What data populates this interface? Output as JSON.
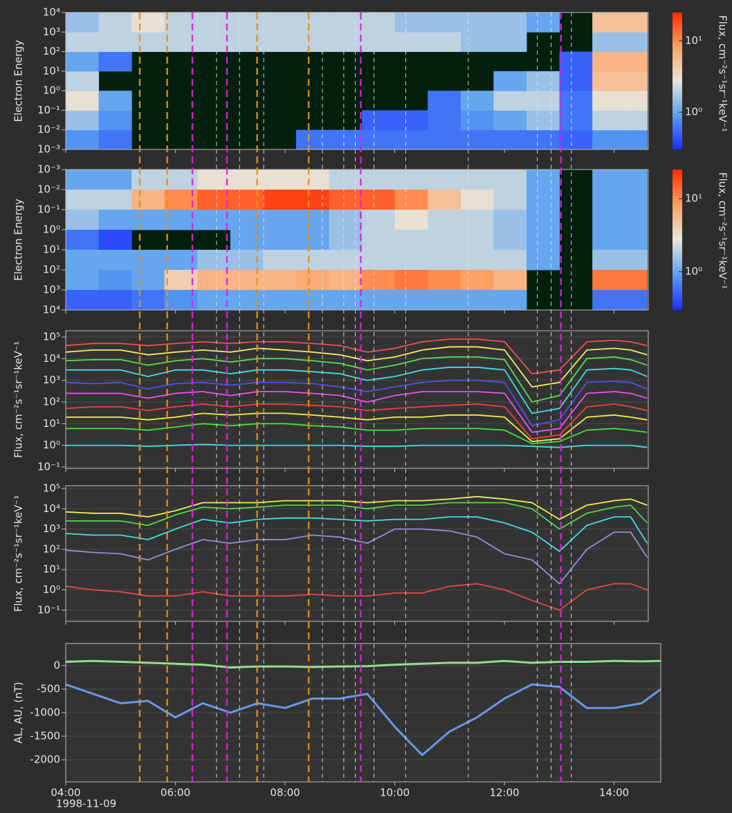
{
  "chart_data": [
    {
      "type": "heatmap",
      "ylabel": "Electron Energy",
      "ylog": true,
      "ylim": [
        0.001,
        10000
      ],
      "yticks": [
        {
          "value": 0.001,
          "label": "10⁻³"
        },
        {
          "value": 0.01,
          "label": "10⁻²"
        },
        {
          "value": 0.1,
          "label": "10⁻¹"
        },
        {
          "value": 1,
          "label": "10⁰"
        },
        {
          "value": 10,
          "label": "10¹"
        },
        {
          "value": 100,
          "label": "10²"
        },
        {
          "value": 1000,
          "label": "10³"
        },
        {
          "value": 10000,
          "label": "10⁴"
        }
      ],
      "xlim": [
        4,
        14.62
      ],
      "x_bins": [
        4,
        4.6,
        5.2,
        5.8,
        6.4,
        7,
        7.6,
        8.2,
        8.8,
        9.4,
        10,
        10.6,
        11.2,
        11.8,
        12.4,
        13,
        13.6,
        14.2,
        14.6
      ],
      "y_bins": [
        0.001,
        0.01,
        0.1,
        1,
        10,
        100,
        1000,
        10000
      ],
      "z": [
        [
          0.8,
          0.6,
          null,
          null,
          null,
          null,
          null,
          0.6,
          0.6,
          0.6,
          0.6,
          0.6,
          0.6,
          0.6,
          0.6,
          0.5,
          0.8,
          0.8
        ],
        [
          1.5,
          0.8,
          null,
          null,
          null,
          null,
          null,
          null,
          null,
          0.5,
          0.5,
          0.6,
          0.8,
          1,
          1.5,
          0.6,
          2,
          2
        ],
        [
          3,
          1,
          null,
          null,
          null,
          null,
          null,
          null,
          null,
          null,
          null,
          0.6,
          1,
          2,
          2,
          0.6,
          3,
          3
        ],
        [
          2,
          null,
          null,
          null,
          null,
          null,
          null,
          null,
          null,
          null,
          null,
          null,
          null,
          1,
          1.5,
          0.5,
          5,
          5
        ],
        [
          1,
          0.6,
          null,
          null,
          null,
          null,
          null,
          null,
          null,
          null,
          null,
          null,
          null,
          null,
          null,
          0.5,
          6,
          6
        ],
        [
          2,
          2,
          2,
          2,
          2,
          2,
          2,
          2,
          2,
          2,
          2,
          2,
          1.5,
          1.5,
          null,
          null,
          1.5,
          1.5
        ],
        [
          1.5,
          2,
          3,
          2,
          2,
          2,
          2,
          2,
          2,
          2,
          1.5,
          1.5,
          1.5,
          1.5,
          1,
          null,
          5,
          5
        ]
      ],
      "zlim": [
        0.3,
        25
      ],
      "zticks": [
        {
          "value": 1,
          "label": "10⁰"
        },
        {
          "value": 10,
          "label": "10¹"
        }
      ],
      "zlabel": "Flux, cm⁻²s⁻¹sr⁻¹keV⁻¹",
      "colormap": [
        "#1a2cff",
        "#5aa0f0",
        "#e6e6dc",
        "#ffa060",
        "#ff2a00"
      ]
    },
    {
      "type": "heatmap",
      "ylabel": "Electron Energy",
      "ylog": true,
      "ylim": [
        10000,
        0.001
      ],
      "yticks": [
        {
          "value": 0.001,
          "label": "10⁻³"
        },
        {
          "value": 0.01,
          "label": "10⁻²"
        },
        {
          "value": 0.1,
          "label": "10⁻¹"
        },
        {
          "value": 1,
          "label": "10⁰"
        },
        {
          "value": 10,
          "label": "10¹"
        },
        {
          "value": 100,
          "label": "10²"
        },
        {
          "value": 1000,
          "label": "10³"
        },
        {
          "value": 10000,
          "label": "10⁴"
        }
      ],
      "xlim": [
        4,
        14.62
      ],
      "x_bins": [
        4,
        4.6,
        5.2,
        5.8,
        6.4,
        7,
        7.6,
        8.2,
        8.8,
        9.4,
        10,
        10.6,
        11.2,
        11.8,
        12.4,
        13,
        13.6,
        14.2,
        14.6
      ],
      "y_bins": [
        0.001,
        0.01,
        0.1,
        1,
        10,
        100,
        1000,
        10000
      ],
      "z": [
        [
          1,
          1,
          2,
          2,
          3,
          3,
          3,
          3,
          2,
          2,
          2,
          2,
          2,
          2,
          1,
          null,
          1,
          1
        ],
        [
          2,
          2,
          6,
          10,
          15,
          15,
          20,
          20,
          15,
          15,
          10,
          5,
          3,
          2,
          1,
          null,
          1,
          1
        ],
        [
          1.5,
          1,
          1,
          1,
          1,
          1,
          1,
          1,
          1.5,
          2,
          3,
          2,
          2,
          1.5,
          1,
          null,
          1,
          1
        ],
        [
          0.6,
          0.4,
          null,
          null,
          null,
          1,
          1,
          1,
          1.5,
          2,
          2,
          2,
          2,
          1.5,
          1,
          null,
          1,
          1
        ],
        [
          1,
          1,
          1,
          1,
          1.5,
          1.5,
          2,
          2,
          2,
          2,
          2,
          2,
          2,
          2,
          1,
          null,
          1.5,
          1.5
        ],
        [
          1,
          0.8,
          1,
          4,
          6,
          6,
          6,
          7,
          6,
          10,
          12,
          10,
          8,
          6,
          null,
          null,
          12,
          12
        ],
        [
          0.5,
          0.5,
          0.6,
          0.8,
          1,
          1,
          1,
          1,
          1,
          1,
          1,
          1,
          1,
          1,
          null,
          null,
          0.6,
          0.6
        ]
      ],
      "zlim": [
        0.3,
        25
      ],
      "zticks": [
        {
          "value": 1,
          "label": "10⁰"
        },
        {
          "value": 10,
          "label": "10¹"
        }
      ],
      "zlabel": "Flux, cm⁻²s⁻¹sr⁻¹keV⁻¹",
      "colormap": [
        "#1a2cff",
        "#5aa0f0",
        "#e6e6dc",
        "#ffa060",
        "#ff2a00"
      ]
    },
    {
      "type": "line",
      "ylabel": "Flux, cm⁻²s⁻¹sr⁻¹keV⁻¹",
      "ylog": true,
      "grid": true,
      "ylim": [
        0.086,
        194000
      ],
      "yticks": [
        {
          "value": 0.1,
          "label": "10⁻¹"
        },
        {
          "value": 1,
          "label": "10⁰"
        },
        {
          "value": 10,
          "label": "10¹"
        },
        {
          "value": 100,
          "label": "10²"
        },
        {
          "value": 1000,
          "label": "10³"
        },
        {
          "value": 10000,
          "label": "10⁴"
        },
        {
          "value": 100000,
          "label": "10⁵"
        }
      ],
      "xlim": [
        4,
        14.62
      ],
      "x": [
        4,
        4.5,
        5,
        5.5,
        6,
        6.5,
        7,
        7.5,
        8,
        8.5,
        9,
        9.5,
        10,
        10.5,
        11,
        11.5,
        12,
        12.5,
        13,
        13.5,
        14,
        14.3,
        14.6
      ],
      "series": [
        {
          "color": "#f05050",
          "values": [
            40000,
            50000,
            50000,
            40000,
            50000,
            60000,
            50000,
            60000,
            60000,
            50000,
            40000,
            20000,
            30000,
            60000,
            80000,
            80000,
            60000,
            2000,
            3000,
            60000,
            70000,
            60000,
            40000
          ]
        },
        {
          "color": "#f5f060",
          "values": [
            20000,
            25000,
            25000,
            15000,
            20000,
            25000,
            20000,
            30000,
            25000,
            20000,
            15000,
            8000,
            12000,
            25000,
            35000,
            35000,
            25000,
            500,
            800,
            25000,
            30000,
            25000,
            15000
          ]
        },
        {
          "color": "#50e050",
          "values": [
            8000,
            9000,
            9000,
            5000,
            8000,
            10000,
            7000,
            10000,
            10000,
            8000,
            6000,
            3000,
            5000,
            10000,
            12000,
            12000,
            9000,
            100,
            200,
            10000,
            12000,
            9000,
            5000
          ]
        },
        {
          "color": "#40e0e0",
          "values": [
            3000,
            3000,
            3000,
            1500,
            3000,
            3000,
            2000,
            3000,
            3000,
            2500,
            2000,
            1000,
            1500,
            3000,
            4000,
            4000,
            3000,
            30,
            50,
            3000,
            3500,
            3000,
            1500
          ]
        },
        {
          "color": "#5050f0",
          "values": [
            800,
            700,
            800,
            400,
            700,
            800,
            600,
            800,
            800,
            700,
            500,
            300,
            500,
            800,
            1000,
            1000,
            800,
            8,
            15,
            800,
            900,
            800,
            400
          ]
        },
        {
          "color": "#f050f0",
          "values": [
            250,
            250,
            250,
            150,
            250,
            300,
            200,
            300,
            300,
            250,
            200,
            100,
            200,
            300,
            300,
            300,
            250,
            4,
            6,
            250,
            300,
            250,
            150
          ]
        },
        {
          "color": "#f04040",
          "values": [
            50,
            60,
            60,
            40,
            60,
            80,
            60,
            80,
            80,
            70,
            60,
            40,
            50,
            60,
            70,
            80,
            60,
            2,
            3,
            60,
            80,
            60,
            40
          ]
        },
        {
          "color": "#f5f040",
          "values": [
            20,
            20,
            20,
            15,
            20,
            30,
            25,
            30,
            30,
            25,
            20,
            15,
            20,
            20,
            25,
            25,
            20,
            1.5,
            2,
            20,
            25,
            20,
            15
          ]
        },
        {
          "color": "#40e040",
          "values": [
            6,
            6,
            6,
            5,
            7,
            10,
            8,
            10,
            10,
            8,
            7,
            5,
            5,
            6,
            6,
            6,
            5,
            1.2,
            1.5,
            5,
            6,
            5,
            4
          ]
        },
        {
          "color": "#40e0e0",
          "values": [
            1,
            1,
            1,
            0.9,
            1,
            1.1,
            1,
            1,
            1,
            1,
            1,
            0.9,
            0.9,
            1,
            1,
            1,
            1,
            0.9,
            0.8,
            1,
            1,
            1,
            0.8
          ]
        }
      ]
    },
    {
      "type": "line",
      "ylabel": "Flux, cm⁻²s⁻¹sr⁻¹keV⁻¹",
      "ylog": true,
      "grid": true,
      "ylim": [
        0.028,
        137000
      ],
      "yticks": [
        {
          "value": 0.1,
          "label": "10⁻¹"
        },
        {
          "value": 1,
          "label": "10⁰"
        },
        {
          "value": 10,
          "label": "10¹"
        },
        {
          "value": 100,
          "label": "10²"
        },
        {
          "value": 1000,
          "label": "10³"
        },
        {
          "value": 10000,
          "label": "10⁴"
        },
        {
          "value": 100000,
          "label": "10⁵"
        }
      ],
      "xlim": [
        4,
        14.62
      ],
      "x": [
        4,
        4.5,
        5,
        5.5,
        6,
        6.5,
        7,
        7.5,
        8,
        8.5,
        9,
        9.5,
        10,
        10.5,
        11,
        11.5,
        12,
        12.5,
        13,
        13.5,
        14,
        14.3,
        14.6
      ],
      "series": [
        {
          "color": "#f0f050",
          "values": [
            7000,
            6000,
            6000,
            4000,
            8000,
            20000,
            20000,
            20000,
            25000,
            25000,
            25000,
            20000,
            25000,
            25000,
            30000,
            40000,
            30000,
            20000,
            3000,
            15000,
            25000,
            30000,
            15000
          ]
        },
        {
          "color": "#50d850",
          "values": [
            2500,
            2500,
            2500,
            1500,
            5000,
            12000,
            10000,
            12000,
            15000,
            15000,
            15000,
            10000,
            15000,
            15000,
            20000,
            20000,
            20000,
            10000,
            1000,
            6000,
            12000,
            15000,
            2000
          ]
        },
        {
          "color": "#40e0e0",
          "values": [
            600,
            500,
            500,
            300,
            1000,
            3000,
            2000,
            3000,
            3500,
            3500,
            3000,
            2500,
            3000,
            3000,
            4000,
            4000,
            2000,
            700,
            80,
            1500,
            4000,
            4000,
            200
          ]
        },
        {
          "color": "#9090e0",
          "values": [
            90,
            70,
            60,
            30,
            100,
            300,
            200,
            300,
            300,
            500,
            400,
            200,
            1000,
            1000,
            800,
            400,
            60,
            30,
            2,
            100,
            700,
            700,
            40
          ]
        },
        {
          "color": "#e04848",
          "values": [
            1.5,
            1,
            0.8,
            0.5,
            0.5,
            0.8,
            0.5,
            0.5,
            0.5,
            0.6,
            0.5,
            0.5,
            0.7,
            0.7,
            1.5,
            2,
            1,
            0.3,
            0.1,
            1,
            2,
            2,
            1
          ]
        }
      ]
    },
    {
      "type": "line",
      "ylabel": "AL, AU, (nT)",
      "grid": true,
      "ylim": [
        -2470,
        470
      ],
      "yticks": [
        -2000,
        -1500,
        -1000,
        -500,
        0
      ],
      "xlim": [
        4,
        14.85
      ],
      "xticks": [
        {
          "value": 4,
          "label": "04:00"
        },
        {
          "value": 6,
          "label": "06:00"
        },
        {
          "value": 8,
          "label": "08:00"
        },
        {
          "value": 10,
          "label": "10:00"
        },
        {
          "value": 12,
          "label": "12:00"
        },
        {
          "value": 14,
          "label": "14:00"
        }
      ],
      "xlabel": "1998-11-09",
      "x": [
        4,
        4.5,
        5,
        5.5,
        6,
        6.5,
        7,
        7.5,
        8,
        8.5,
        9,
        9.5,
        10,
        10.5,
        11,
        11.5,
        12,
        12.5,
        13,
        13.5,
        14,
        14.5,
        14.85
      ],
      "series": [
        {
          "color": "#90e090",
          "values": [
            80,
            100,
            80,
            60,
            40,
            20,
            -40,
            -20,
            -20,
            -30,
            -20,
            -10,
            20,
            40,
            60,
            60,
            100,
            60,
            80,
            80,
            100,
            90,
            100
          ]
        },
        {
          "color": "#6a98e8",
          "values": [
            -400,
            -600,
            -800,
            -750,
            -1100,
            -800,
            -1000,
            -800,
            -900,
            -700,
            -700,
            -600,
            -1300,
            -1900,
            -1400,
            -1100,
            -700,
            -400,
            -450,
            -900,
            -900,
            -800,
            -500
          ]
        }
      ]
    }
  ],
  "vlines": [
    {
      "color": "#e8901a",
      "x": [
        5.35,
        5.85,
        7.49,
        8.43
      ]
    },
    {
      "color": "#e020e0",
      "x": [
        6.31,
        6.94,
        9.38,
        13.03
      ]
    },
    {
      "color": "#e0e0e0",
      "x": [
        6.75,
        7.17,
        7.61,
        8.68,
        9.07,
        9.28,
        9.62,
        10.2,
        11.34,
        12.6,
        12.85,
        13.22
      ]
    }
  ]
}
